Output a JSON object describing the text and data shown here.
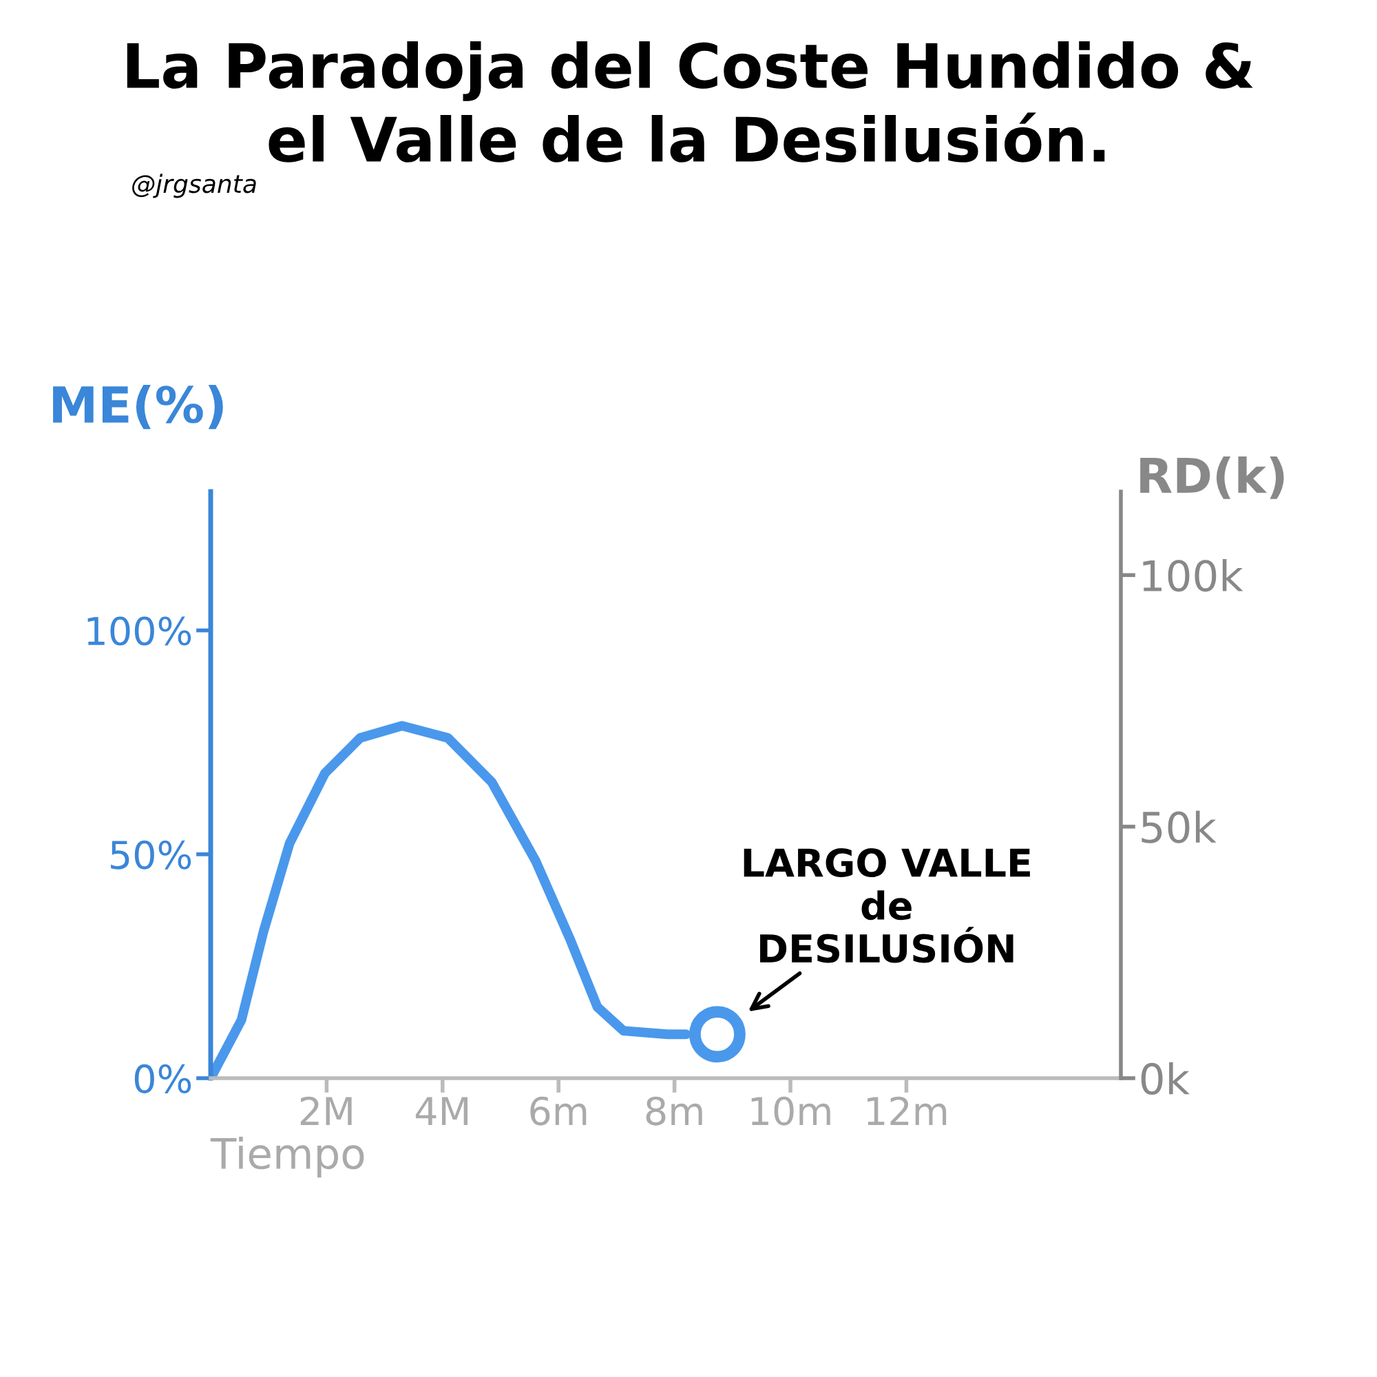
{
  "chart_data": {
    "type": "line",
    "title": "La Paradoja del Coste Hundido &\nel Valle de la Desilusión.",
    "xlabel": "Tiempo",
    "ylabel": "ME(%)",
    "y2label": "RD(k)",
    "xlim": [
      0,
      15.7
    ],
    "xticks": [
      {
        "value": 2,
        "label": "2M"
      },
      {
        "value": 4,
        "label": "4M"
      },
      {
        "value": 6,
        "label": "6m"
      },
      {
        "value": 8,
        "label": "8m"
      },
      {
        "value": 10,
        "label": "10m"
      },
      {
        "value": 12,
        "label": "12m"
      }
    ],
    "ylim": [
      0,
      131
    ],
    "yticks": [
      {
        "value": 0,
        "label": "0%"
      },
      {
        "value": 50,
        "label": "50%"
      },
      {
        "value": 100,
        "label": "100%"
      }
    ],
    "y2lim": [
      0,
      116.6
    ],
    "y2ticks": [
      {
        "value": 0,
        "label": "0k"
      },
      {
        "value": 50,
        "label": "50k"
      },
      {
        "value": 100,
        "label": "100k"
      }
    ],
    "series": [
      {
        "color": "#4a98ec",
        "marker": "none",
        "line_style": "solid",
        "x": [
          0,
          0.53,
          0.91,
          1.36,
          1.97,
          2.58,
          3.3,
          4.09,
          4.85,
          5.61,
          6.21,
          6.67,
          7.12,
          7.88,
          8.2
        ],
        "values": [
          0,
          13,
          32.7,
          52.4,
          68.1,
          76,
          78.7,
          76,
          66.1,
          48.4,
          30.7,
          15.9,
          10.6,
          9.8,
          9.8
        ]
      },
      {
        "type": "scatter",
        "color": "#4a98ec",
        "marker": "circle",
        "x": [
          8.74
        ],
        "values": [
          9.8
        ]
      }
    ],
    "annotations": [
      {
        "text": "LARGO VALLE\nde\nDESILUSIÓN",
        "x": 8.74,
        "y": 9.8
      },
      "@jrgsanta"
    ],
    "grid": false
  }
}
